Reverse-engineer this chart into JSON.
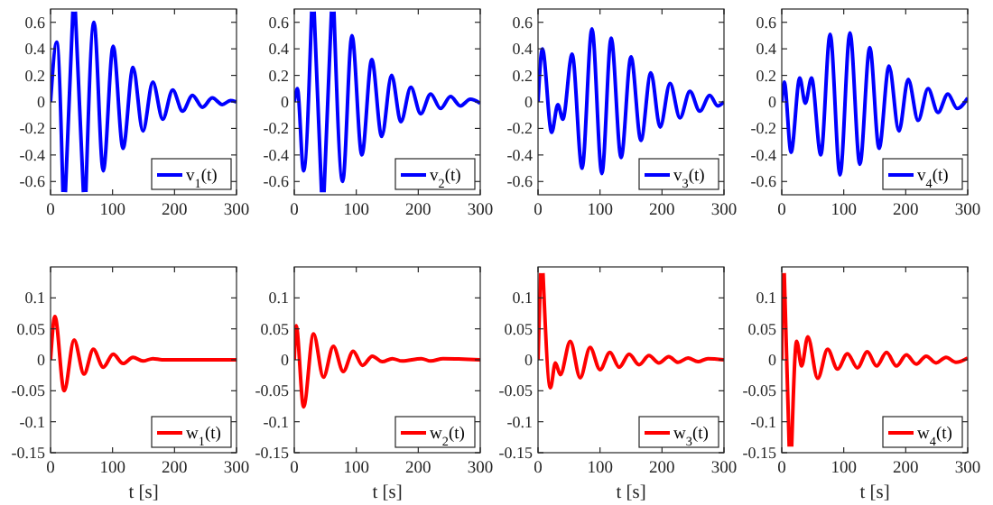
{
  "chart_data": [
    {
      "type": "line",
      "x": [
        0,
        10,
        20,
        22,
        24,
        36,
        38,
        40,
        53,
        55,
        57,
        70,
        85,
        101,
        117,
        133,
        149,
        165,
        181,
        197,
        213,
        229,
        245,
        261,
        277,
        290,
        300
      ],
      "series": [
        {
          "name": "v$_{1}$(t)",
          "color": "#0000ff",
          "values": [
            0,
            0.45,
            -0.68,
            null,
            -0.68,
            0.68,
            null,
            0.68,
            -0.68,
            null,
            -0.68,
            0.6,
            -0.52,
            0.42,
            -0.35,
            0.26,
            -0.22,
            0.15,
            -0.13,
            0.09,
            -0.07,
            0.05,
            -0.04,
            0.03,
            -0.02,
            0.01,
            0
          ]
        }
      ],
      "xlim": [
        0,
        300
      ],
      "xticks": [
        0,
        100,
        200,
        300
      ],
      "ylim": [
        -0.7,
        0.7
      ],
      "yticks": [
        -0.6,
        -0.4,
        -0.2,
        0,
        0.2,
        0.4,
        0.6
      ],
      "legend": "bottom right",
      "grid": false
    },
    {
      "type": "line",
      "x": [
        0,
        5,
        15,
        28,
        30,
        32,
        44,
        46,
        48,
        60,
        62,
        64,
        78,
        93,
        109,
        125,
        141,
        157,
        172,
        188,
        204,
        220,
        236,
        252,
        268,
        284,
        300
      ],
      "series": [
        {
          "name": "v$_{2}$(t)",
          "color": "#0000ff",
          "values": [
            0,
            0.1,
            -0.52,
            0.68,
            null,
            0.68,
            -0.68,
            null,
            -0.68,
            0.68,
            null,
            0.68,
            -0.6,
            0.5,
            -0.4,
            0.32,
            -0.26,
            0.2,
            -0.15,
            0.11,
            -0.09,
            0.06,
            -0.05,
            0.04,
            -0.03,
            0.02,
            -0.01
          ]
        }
      ],
      "xlim": [
        0,
        300
      ],
      "xticks": [
        0,
        100,
        200,
        300
      ],
      "ylim": [
        -0.7,
        0.7
      ],
      "yticks": [
        -0.6,
        -0.4,
        -0.2,
        0,
        0.2,
        0.4,
        0.6
      ],
      "legend": "bottom right",
      "grid": false
    },
    {
      "type": "line",
      "x": [
        0,
        7,
        22,
        32,
        40,
        55,
        71,
        87,
        103,
        118,
        134,
        150,
        166,
        182,
        197,
        213,
        229,
        245,
        261,
        277,
        290,
        300
      ],
      "series": [
        {
          "name": "v$_{3}$(t)",
          "color": "#0000ff",
          "values": [
            0,
            0.4,
            -0.23,
            -0.02,
            -0.13,
            0.36,
            -0.5,
            0.55,
            -0.54,
            0.48,
            -0.42,
            0.34,
            -0.29,
            0.22,
            -0.19,
            0.14,
            -0.12,
            0.08,
            -0.07,
            0.05,
            -0.03,
            0
          ]
        }
      ],
      "xlim": [
        0,
        300
      ],
      "xticks": [
        0,
        100,
        200,
        300
      ],
      "ylim": [
        -0.7,
        0.7
      ],
      "yticks": [
        -0.6,
        -0.4,
        -0.2,
        0,
        0.2,
        0.4,
        0.6
      ],
      "legend": "bottom right",
      "grid": false
    },
    {
      "type": "line",
      "x": [
        0,
        4,
        15,
        29,
        38,
        48,
        63,
        78,
        94,
        110,
        126,
        142,
        157,
        173,
        189,
        204,
        220,
        236,
        252,
        268,
        283,
        300
      ],
      "series": [
        {
          "name": "v$_{4}$(t)",
          "color": "#0000ff",
          "values": [
            0,
            0.15,
            -0.38,
            0.18,
            -0.01,
            0.18,
            -0.4,
            0.51,
            -0.55,
            0.52,
            -0.47,
            0.41,
            -0.35,
            0.27,
            -0.22,
            0.17,
            -0.14,
            0.1,
            -0.08,
            0.06,
            -0.05,
            0.03
          ]
        }
      ],
      "xlim": [
        0,
        300
      ],
      "xticks": [
        0,
        100,
        200,
        300
      ],
      "ylim": [
        -0.7,
        0.7
      ],
      "yticks": [
        -0.6,
        -0.4,
        -0.2,
        0,
        0.2,
        0.4,
        0.6
      ],
      "legend": "bottom right",
      "grid": false
    },
    {
      "type": "line",
      "x": [
        0,
        7,
        22,
        38,
        54,
        69,
        85,
        101,
        117,
        133,
        149,
        165,
        180,
        300
      ],
      "series": [
        {
          "name": "w$_{1}$(t)",
          "color": "#ff0000",
          "values": [
            0,
            0.07,
            -0.05,
            0.032,
            -0.023,
            0.017,
            -0.012,
            0.009,
            -0.006,
            0.004,
            -0.002,
            0.002,
            0,
            0
          ]
        }
      ],
      "xlim": [
        0,
        300
      ],
      "xticks": [
        0,
        100,
        200,
        300
      ],
      "ylim": [
        -0.15,
        0.15
      ],
      "yticks": [
        -0.15,
        -0.1,
        -0.05,
        0,
        0.05,
        0.1
      ],
      "xlabel": "t [s]",
      "legend": "bottom right",
      "grid": false
    },
    {
      "type": "line",
      "x": [
        0,
        3,
        15,
        31,
        47,
        63,
        79,
        95,
        110,
        126,
        142,
        158,
        174,
        205,
        220,
        240,
        300
      ],
      "series": [
        {
          "name": "w$_{2}$(t)",
          "color": "#ff0000",
          "values": [
            0,
            0.055,
            -0.076,
            0.042,
            -0.028,
            0.022,
            -0.019,
            0.014,
            -0.009,
            0.006,
            -0.003,
            0.002,
            -0.002,
            0.002,
            -0.002,
            0.002,
            0
          ]
        }
      ],
      "xlim": [
        0,
        300
      ],
      "xticks": [
        0,
        100,
        200,
        300
      ],
      "ylim": [
        -0.15,
        0.15
      ],
      "yticks": [
        -0.15,
        -0.1,
        -0.05,
        0,
        0.05,
        0.1
      ],
      "xlabel": "t [s]",
      "legend": "bottom right",
      "grid": false
    },
    {
      "type": "line",
      "x": [
        0,
        4,
        6,
        8,
        20,
        28,
        36,
        52,
        68,
        84,
        100,
        116,
        131,
        147,
        163,
        179,
        195,
        211,
        226,
        242,
        258,
        274,
        300
      ],
      "series": [
        {
          "name": "w$_{3}$(t)",
          "color": "#ff0000",
          "values": [
            0,
            0.14,
            null,
            0.14,
            -0.045,
            -0.005,
            -0.024,
            0.03,
            -0.029,
            0.02,
            -0.016,
            0.012,
            -0.012,
            0.009,
            -0.008,
            0.007,
            -0.005,
            0.005,
            -0.004,
            0.003,
            -0.003,
            0.002,
            0
          ]
        }
      ],
      "xlim": [
        0,
        300
      ],
      "xticks": [
        0,
        100,
        200,
        300
      ],
      "ylim": [
        -0.15,
        0.15
      ],
      "yticks": [
        -0.15,
        -0.1,
        -0.05,
        0,
        0.05,
        0.1
      ],
      "xlabel": "t [s]",
      "legend": "bottom right",
      "grid": false
    },
    {
      "type": "line",
      "x": [
        0,
        1,
        2,
        4,
        12,
        14,
        16,
        24,
        32,
        42,
        58,
        74,
        90,
        106,
        122,
        138,
        153,
        169,
        185,
        201,
        217,
        233,
        249,
        265,
        281,
        300
      ],
      "series": [
        {
          "name": "w$_{4}$(t)",
          "color": "#ff0000",
          "values": [
            0,
            0.14,
            null,
            0.14,
            -0.14,
            null,
            -0.14,
            0.03,
            -0.01,
            0.037,
            -0.03,
            0.017,
            -0.015,
            0.01,
            -0.013,
            0.013,
            -0.01,
            0.012,
            -0.01,
            0.008,
            -0.007,
            0.006,
            -0.005,
            0.004,
            -0.004,
            0.003
          ]
        }
      ],
      "xlim": [
        0,
        300
      ],
      "xticks": [
        0,
        100,
        200,
        300
      ],
      "ylim": [
        -0.15,
        0.15
      ],
      "yticks": [
        -0.15,
        -0.1,
        -0.05,
        0,
        0.05,
        0.1
      ],
      "xlabel": "t [s]",
      "legend": "bottom right",
      "grid": false
    }
  ]
}
